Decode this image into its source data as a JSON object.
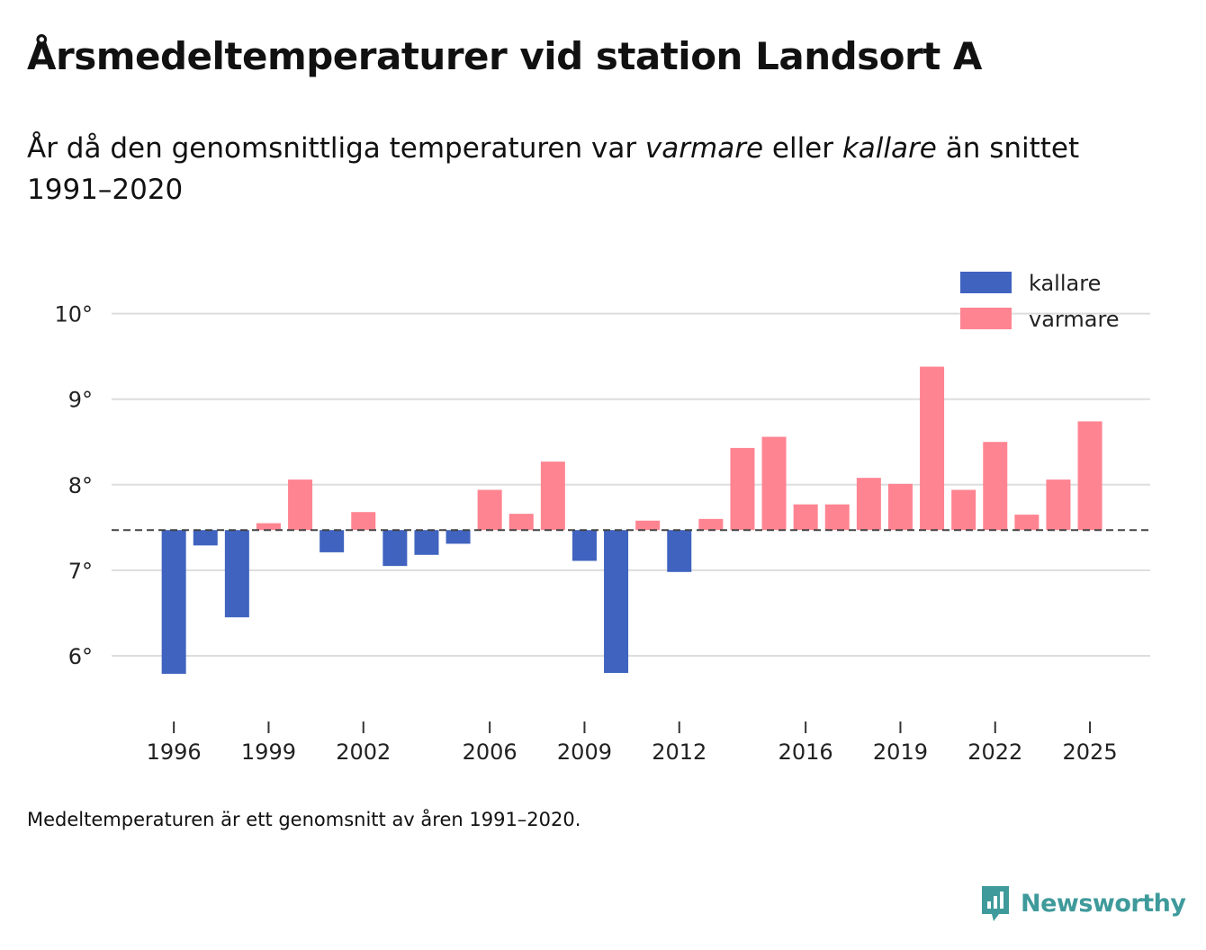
{
  "title": "Årsmedeltemperaturer vid station Landsort A",
  "subtitle": {
    "part1": "År då den genomsnittliga temperaturen var ",
    "warm_word": "varmare",
    "part2": " eller ",
    "cold_word": "kallare",
    "part3": " än snittet 1991–2020"
  },
  "footnote": "Medeltemperaturen är ett genomsnitt av åren 1991–2020.",
  "brand": {
    "name": "Newsworthy",
    "icon": "newsworthy-logo-icon"
  },
  "colors": {
    "cold": "#3f63bf",
    "warm": "#ff8491",
    "grid": "#dddddd",
    "baseline": "#444444",
    "brand": "#3f9a9b"
  },
  "chart_data": {
    "type": "bar",
    "title": "Årsmedeltemperaturer vid station Landsort A",
    "xlabel": "",
    "ylabel": "",
    "baseline": 7.47,
    "baseline_style": "dashed",
    "ylim": [
      5.3,
      10.25
    ],
    "y_ticks": [
      6,
      7,
      8,
      9,
      10
    ],
    "y_tick_labels": [
      "6°",
      "7°",
      "8°",
      "9°",
      "10°"
    ],
    "x_ticks": [
      1996,
      1999,
      2002,
      2006,
      2009,
      2012,
      2016,
      2019,
      2022,
      2025
    ],
    "x_tick_labels": [
      "1996",
      "1999",
      "2002",
      "2006",
      "2009",
      "2012",
      "2016",
      "2019",
      "2022",
      "2025"
    ],
    "legend": {
      "position": "top-right",
      "entries": [
        {
          "key": "cold",
          "label": "kallare"
        },
        {
          "key": "warm",
          "label": "varmare"
        }
      ]
    },
    "years": [
      1996,
      1997,
      1998,
      1999,
      2000,
      2001,
      2002,
      2003,
      2004,
      2005,
      2006,
      2007,
      2008,
      2009,
      2010,
      2011,
      2012,
      2013,
      2014,
      2015,
      2016,
      2017,
      2018,
      2019,
      2020,
      2021,
      2022,
      2023,
      2024,
      2025
    ],
    "values": [
      5.79,
      7.29,
      6.45,
      7.55,
      8.06,
      7.21,
      7.68,
      7.05,
      7.18,
      7.31,
      7.94,
      7.66,
      8.27,
      7.11,
      5.8,
      7.58,
      6.98,
      7.6,
      8.43,
      8.56,
      7.77,
      7.77,
      8.08,
      8.01,
      9.38,
      7.94,
      8.5,
      7.65,
      8.06,
      8.74
    ]
  }
}
